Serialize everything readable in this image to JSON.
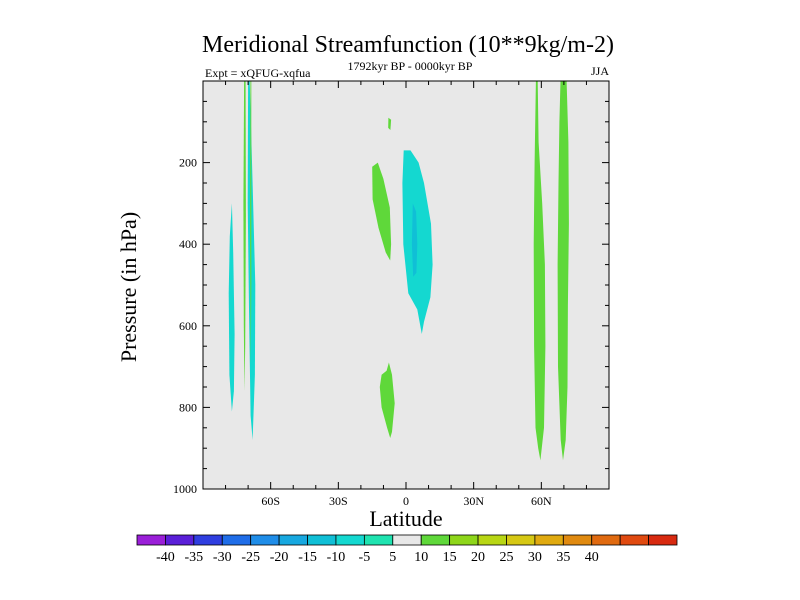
{
  "chart_data": {
    "type": "heatmap",
    "title": "Meridional Streamfunction (10**9kg/m-2)",
    "left_label": "Expt = xQFUG-xqfua",
    "center_label": "1792kyr BP - 0000kyr BP",
    "right_label": "JJA",
    "xlabel": "Latitude",
    "ylabel": "Pressure (in hPa)",
    "xlim": [
      -90,
      90
    ],
    "ylim": [
      1000,
      0
    ],
    "x_ticks": [
      {
        "value": -60,
        "label": "60S"
      },
      {
        "value": -30,
        "label": "30S"
      },
      {
        "value": 0,
        "label": "0"
      },
      {
        "value": 30,
        "label": "30N"
      },
      {
        "value": 60,
        "label": "60N"
      }
    ],
    "y_ticks": [
      {
        "value": 200,
        "label": "200"
      },
      {
        "value": 400,
        "label": "400"
      },
      {
        "value": 600,
        "label": "600"
      },
      {
        "value": 800,
        "label": "800"
      },
      {
        "value": 1000,
        "label": "1000"
      }
    ],
    "colorbar": {
      "labels": [
        "-40",
        "-35",
        "-30",
        "-25",
        "-20",
        "-15",
        "-10",
        "-5",
        "5",
        "10",
        "15",
        "20",
        "25",
        "30",
        "35",
        "40"
      ],
      "colors": [
        "#9a1fd8",
        "#5a1fd8",
        "#2f3ee0",
        "#1f6de8",
        "#1f8de8",
        "#17a8e0",
        "#10bfd6",
        "#14d8d0",
        "#1fe3b0",
        "#e8e8e8",
        "#5fd83a",
        "#8ed61a",
        "#b8d614",
        "#d6c814",
        "#e0aa10",
        "#e08a10",
        "#e06a10",
        "#e04a10",
        "#d82a10"
      ]
    },
    "regions": [
      {
        "name": "cyan-band-70s",
        "value": -5,
        "color": "#14d8d0",
        "points": [
          [
            -77.2,
            300
          ],
          [
            -76.6,
            420
          ],
          [
            -76.0,
            620
          ],
          [
            -76.3,
            760
          ],
          [
            -77.2,
            810
          ],
          [
            -78.3,
            720
          ],
          [
            -78.6,
            520
          ],
          [
            -78.1,
            380
          ]
        ]
      },
      {
        "name": "green-strip-68s",
        "value": 5,
        "color": "#5fd83a",
        "points": [
          [
            -71.8,
            0
          ],
          [
            -71.1,
            0
          ],
          [
            -71.0,
            330
          ],
          [
            -71.3,
            650
          ],
          [
            -71.6,
            760
          ],
          [
            -71.9,
            600
          ],
          [
            -72.1,
            300
          ]
        ]
      },
      {
        "name": "cyan-band-66s",
        "value": -5,
        "color": "#14d8d0",
        "points": [
          [
            -70.0,
            0
          ],
          [
            -69.3,
            0
          ],
          [
            -68.0,
            250
          ],
          [
            -66.8,
            500
          ],
          [
            -67.0,
            720
          ],
          [
            -68.0,
            880
          ],
          [
            -68.9,
            820
          ],
          [
            -69.6,
            560
          ],
          [
            -70.2,
            300
          ]
        ]
      },
      {
        "name": "green-thin-67s",
        "value": 5,
        "color": "#5fd83a",
        "points": [
          [
            -69.0,
            0
          ],
          [
            -68.6,
            0
          ],
          [
            -68.6,
            500
          ],
          [
            -68.8,
            700
          ],
          [
            -69.1,
            400
          ]
        ]
      },
      {
        "name": "green-blob-10s-upper",
        "value": 5,
        "color": "#5fd83a",
        "points": [
          [
            -15.0,
            210
          ],
          [
            -12.5,
            200
          ],
          [
            -10.0,
            240
          ],
          [
            -7.2,
            310
          ],
          [
            -6.6,
            400
          ],
          [
            -7.0,
            440
          ],
          [
            -9.0,
            420
          ],
          [
            -12.2,
            360
          ],
          [
            -14.8,
            290
          ]
        ]
      },
      {
        "name": "green-fleck-7s",
        "value": 5,
        "color": "#5fd83a",
        "points": [
          [
            -7.8,
            90
          ],
          [
            -6.6,
            95
          ],
          [
            -6.9,
            120
          ],
          [
            -7.9,
            115
          ]
        ]
      },
      {
        "name": "cyan-main-0-10n",
        "value": -5,
        "color": "#14d8d0",
        "points": [
          [
            -1.0,
            170
          ],
          [
            2.0,
            170
          ],
          [
            5.6,
            200
          ],
          [
            8.0,
            250
          ],
          [
            11.1,
            350
          ],
          [
            11.8,
            450
          ],
          [
            10.8,
            530
          ],
          [
            8.0,
            590
          ],
          [
            7.0,
            620
          ],
          [
            5.0,
            560
          ],
          [
            1.0,
            520
          ],
          [
            -1.2,
            400
          ],
          [
            -1.6,
            250
          ]
        ]
      },
      {
        "name": "cyan-core-3n",
        "value": -10,
        "color": "#10bfd6",
        "points": [
          [
            3.0,
            300
          ],
          [
            4.5,
            320
          ],
          [
            5.0,
            400
          ],
          [
            4.6,
            470
          ],
          [
            3.2,
            480
          ],
          [
            2.6,
            400
          ]
        ]
      },
      {
        "name": "green-blob-10s-lower",
        "value": 5,
        "color": "#5fd83a",
        "points": [
          [
            -7.6,
            690
          ],
          [
            -6.2,
            720
          ],
          [
            -5.0,
            790
          ],
          [
            -6.2,
            860
          ],
          [
            -7.0,
            875
          ],
          [
            -8.4,
            850
          ],
          [
            -10.8,
            800
          ],
          [
            -11.6,
            750
          ],
          [
            -10.8,
            720
          ],
          [
            -8.6,
            710
          ]
        ]
      },
      {
        "name": "green-band-58n",
        "value": 5,
        "color": "#5fd83a",
        "points": [
          [
            57.6,
            0
          ],
          [
            58.4,
            0
          ],
          [
            58.8,
            150
          ],
          [
            60.4,
            300
          ],
          [
            61.6,
            450
          ],
          [
            61.8,
            650
          ],
          [
            61.2,
            850
          ],
          [
            59.6,
            930
          ],
          [
            58.6,
            900
          ],
          [
            57.4,
            850
          ],
          [
            56.8,
            650
          ],
          [
            56.6,
            400
          ],
          [
            57.0,
            200
          ]
        ]
      },
      {
        "name": "green-band-70n",
        "value": 5,
        "color": "#5fd83a",
        "points": [
          [
            68.5,
            0
          ],
          [
            71.2,
            0
          ],
          [
            72.0,
            150
          ],
          [
            72.2,
            350
          ],
          [
            71.8,
            550
          ],
          [
            71.6,
            750
          ],
          [
            70.8,
            880
          ],
          [
            69.6,
            930
          ],
          [
            68.6,
            880
          ],
          [
            67.4,
            700
          ],
          [
            67.2,
            450
          ],
          [
            67.6,
            250
          ],
          [
            68.0,
            100
          ]
        ]
      }
    ]
  }
}
